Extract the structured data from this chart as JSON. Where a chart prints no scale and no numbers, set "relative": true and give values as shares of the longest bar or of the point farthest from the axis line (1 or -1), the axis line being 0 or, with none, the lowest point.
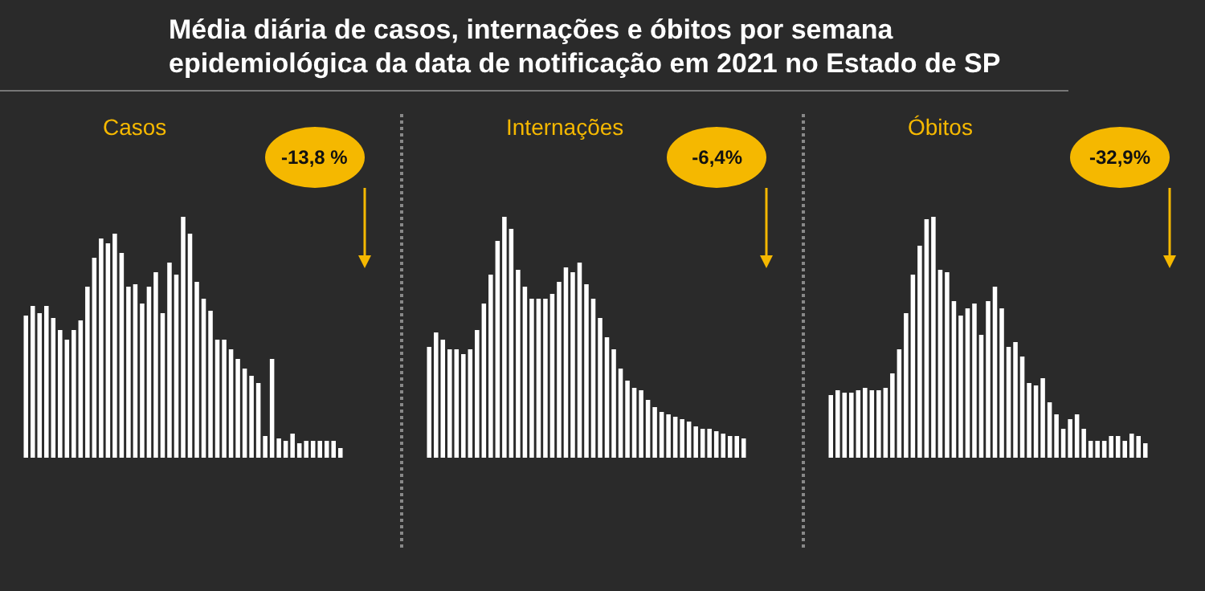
{
  "chart_data": [
    {
      "type": "other",
      "title": "Média diária de casos, internações e óbitos por semana epidemiológica da data de notificação em 2021 no Estado de SP"
    },
    {
      "type": "bar",
      "title": "Casos",
      "relative": true,
      "annotations": [
        "-13,8 %"
      ],
      "categories": [
        null,
        null,
        null,
        null,
        null,
        null,
        null,
        null,
        null,
        null,
        null,
        null,
        null,
        null,
        null,
        null,
        null,
        null,
        null,
        null,
        null,
        null,
        null,
        null,
        null,
        null,
        null,
        null,
        null,
        null,
        null,
        null,
        null,
        null,
        null,
        null,
        null,
        null,
        null,
        null,
        null,
        null,
        null,
        null,
        null,
        null,
        null
      ],
      "series": [
        {
          "color": "#ffffff",
          "values": [
            0.59,
            0.63,
            0.6,
            0.63,
            0.58,
            0.53,
            0.49,
            0.53,
            0.57,
            0.71,
            0.83,
            0.91,
            0.89,
            0.93,
            0.85,
            0.71,
            0.72,
            0.64,
            0.71,
            0.77,
            0.6,
            0.81,
            0.76,
            1,
            0.93,
            0.73,
            0.66,
            0.61,
            0.49,
            0.49,
            0.45,
            0.41,
            0.37,
            0.34,
            0.31,
            0.09,
            0.41,
            0.08,
            0.07,
            0.1,
            0.06,
            0.07,
            0.07,
            0.07,
            0.07,
            0.07,
            0.04
          ]
        }
      ]
    },
    {
      "type": "bar",
      "title": "Internações",
      "relative": true,
      "annotations": [
        "-6,4%"
      ],
      "categories": [
        null,
        null,
        null,
        null,
        null,
        null,
        null,
        null,
        null,
        null,
        null,
        null,
        null,
        null,
        null,
        null,
        null,
        null,
        null,
        null,
        null,
        null,
        null,
        null,
        null,
        null,
        null,
        null,
        null,
        null,
        null,
        null,
        null,
        null,
        null,
        null,
        null,
        null,
        null,
        null,
        null,
        null,
        null,
        null,
        null,
        null,
        null
      ],
      "series": [
        {
          "color": "#ffffff",
          "values": [
            0.46,
            0.52,
            0.49,
            0.45,
            0.45,
            0.43,
            0.45,
            0.53,
            0.64,
            0.76,
            0.9,
            1,
            0.95,
            0.78,
            0.71,
            0.66,
            0.66,
            0.66,
            0.68,
            0.73,
            0.79,
            0.77,
            0.81,
            0.72,
            0.66,
            0.58,
            0.5,
            0.45,
            0.37,
            0.32,
            0.29,
            0.28,
            0.24,
            0.21,
            0.19,
            0.18,
            0.17,
            0.16,
            0.15,
            0.13,
            0.12,
            0.12,
            0.11,
            0.1,
            0.09,
            0.09,
            0.08
          ]
        }
      ]
    },
    {
      "type": "bar",
      "title": "Óbitos",
      "relative": true,
      "annotations": [
        "-32,9%"
      ],
      "categories": [
        null,
        null,
        null,
        null,
        null,
        null,
        null,
        null,
        null,
        null,
        null,
        null,
        null,
        null,
        null,
        null,
        null,
        null,
        null,
        null,
        null,
        null,
        null,
        null,
        null,
        null,
        null,
        null,
        null,
        null,
        null,
        null,
        null,
        null,
        null,
        null,
        null,
        null,
        null,
        null,
        null,
        null,
        null,
        null,
        null,
        null,
        null
      ],
      "series": [
        {
          "color": "#ffffff",
          "values": [
            0.26,
            0.28,
            0.27,
            0.27,
            0.28,
            0.29,
            0.28,
            0.28,
            0.29,
            0.35,
            0.45,
            0.6,
            0.76,
            0.88,
            0.99,
            1,
            0.78,
            0.77,
            0.65,
            0.59,
            0.62,
            0.64,
            0.51,
            0.65,
            0.71,
            0.62,
            0.46,
            0.48,
            0.42,
            0.31,
            0.3,
            0.33,
            0.23,
            0.18,
            0.12,
            0.16,
            0.18,
            0.12,
            0.07,
            0.07,
            0.07,
            0.09,
            0.09,
            0.07,
            0.1,
            0.09,
            0.06
          ]
        }
      ]
    }
  ]
}
